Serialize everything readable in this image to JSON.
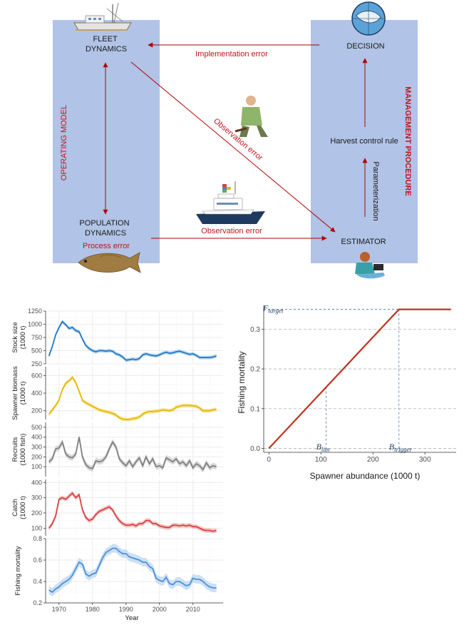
{
  "diagram": {
    "fleet_dynamics": [
      "FLEET",
      "DYNAMICS"
    ],
    "population_dynamics": [
      "POPULATION",
      "DYNAMICS"
    ],
    "process_error": "Process error",
    "operating_model": "OPERATING MODEL",
    "management_procedure": "MANAGEMENT PROCEDURE",
    "decision": "DECISION",
    "harvest_control_rule": "Harvest control rule",
    "estimator": "ESTIMATOR",
    "parameterization": "Parameterization",
    "implementation_error": "Implementation error",
    "observation_error_diag": "Observation error",
    "observation_error_horiz": "Observation error",
    "colors": {
      "box": "#b1c3e6",
      "arrow": "#b00000",
      "red_text": "#c0141c"
    }
  },
  "chart_data": [
    {
      "type": "line",
      "xlabel": "Year",
      "xlim": [
        1966,
        2019
      ],
      "x_ticks": [
        1970,
        1980,
        1990,
        2000,
        2010
      ],
      "x": [
        1967,
        1968,
        1969,
        1970,
        1971,
        1972,
        1973,
        1974,
        1975,
        1976,
        1977,
        1978,
        1979,
        1980,
        1981,
        1982,
        1983,
        1984,
        1985,
        1986,
        1987,
        1988,
        1989,
        1990,
        1991,
        1992,
        1993,
        1994,
        1995,
        1996,
        1997,
        1998,
        1999,
        2000,
        2001,
        2002,
        2003,
        2004,
        2005,
        2006,
        2007,
        2008,
        2009,
        2010,
        2011,
        2012,
        2013,
        2014,
        2015,
        2016,
        2017
      ],
      "panels": [
        {
          "ylabel": [
            "Stock size",
            "(1000 t)"
          ],
          "ylim": [
            250,
            1250
          ],
          "y_ticks": [
            250,
            500,
            750,
            1000,
            1250
          ],
          "color": "#1f78c8",
          "band_color": "#a6cbec",
          "values": [
            400,
            580,
            800,
            940,
            1050,
            990,
            920,
            940,
            880,
            860,
            720,
            600,
            540,
            500,
            480,
            500,
            500,
            490,
            500,
            490,
            440,
            420,
            380,
            320,
            330,
            340,
            330,
            350,
            420,
            440,
            420,
            410,
            400,
            420,
            450,
            470,
            450,
            460,
            480,
            490,
            470,
            450,
            430,
            440,
            410,
            370,
            370,
            370,
            370,
            380,
            400
          ],
          "band": 35
        },
        {
          "ylabel": [
            "Spawner biomass",
            "(1000 t)"
          ],
          "ylim": [
            100,
            700
          ],
          "y_ticks": [
            200,
            400,
            600
          ],
          "color": "#e6b800",
          "band_color": "#f5df8a",
          "values": [
            160,
            210,
            260,
            320,
            440,
            510,
            540,
            580,
            520,
            420,
            320,
            290,
            270,
            250,
            230,
            210,
            200,
            190,
            180,
            170,
            150,
            120,
            105,
            100,
            100,
            110,
            115,
            130,
            160,
            180,
            190,
            190,
            195,
            200,
            210,
            205,
            200,
            210,
            240,
            250,
            260,
            260,
            260,
            255,
            250,
            230,
            200,
            200,
            200,
            210,
            215
          ],
          "band": 22
        },
        {
          "ylabel": [
            "Recruits",
            "(1000 fish)"
          ],
          "ylim": [
            0,
            550
          ],
          "y_ticks": [
            100,
            200,
            300,
            400,
            500
          ],
          "color": "#7f7f7f",
          "band_color": "#cccccc",
          "values": [
            150,
            180,
            280,
            290,
            350,
            230,
            200,
            190,
            230,
            400,
            200,
            120,
            90,
            80,
            160,
            150,
            160,
            200,
            280,
            350,
            300,
            180,
            140,
            110,
            160,
            100,
            150,
            190,
            110,
            200,
            130,
            180,
            100,
            110,
            90,
            190,
            170,
            150,
            180,
            130,
            150,
            110,
            160,
            90,
            130,
            110,
            70,
            140,
            90,
            110,
            100
          ],
          "band": 30
        },
        {
          "ylabel": [
            "Catch",
            "(1000 t)"
          ],
          "ylim": [
            50,
            420
          ],
          "y_ticks": [
            100,
            200,
            300,
            400
          ],
          "color": "#d94040",
          "band_color": "#f2b3b3",
          "values": [
            100,
            130,
            180,
            290,
            300,
            290,
            310,
            330,
            300,
            320,
            220,
            170,
            150,
            160,
            190,
            210,
            220,
            230,
            240,
            220,
            180,
            150,
            130,
            120,
            120,
            125,
            115,
            130,
            130,
            150,
            150,
            130,
            130,
            115,
            110,
            105,
            105,
            120,
            120,
            115,
            120,
            115,
            120,
            110,
            110,
            100,
            90,
            85,
            85,
            80,
            85
          ],
          "band": 15
        },
        {
          "ylabel": [
            "Fishing mortality"
          ],
          "ylim": [
            0.2,
            0.8
          ],
          "y_ticks": [
            0.2,
            0.4,
            0.6,
            0.8
          ],
          "color": "#4a90d9",
          "band_color": "#bcd6f0",
          "values": [
            0.32,
            0.3,
            0.33,
            0.35,
            0.38,
            0.4,
            0.42,
            0.46,
            0.52,
            0.58,
            0.56,
            0.47,
            0.45,
            0.47,
            0.48,
            0.55,
            0.62,
            0.67,
            0.69,
            0.71,
            0.71,
            0.68,
            0.66,
            0.66,
            0.63,
            0.62,
            0.61,
            0.6,
            0.58,
            0.58,
            0.54,
            0.52,
            0.43,
            0.41,
            0.4,
            0.44,
            0.38,
            0.37,
            0.4,
            0.4,
            0.38,
            0.36,
            0.37,
            0.43,
            0.42,
            0.42,
            0.4,
            0.37,
            0.35,
            0.34,
            0.34
          ],
          "band": 0.04
        }
      ]
    },
    {
      "type": "line",
      "xlabel": "Spawner abundance (1000 t)",
      "ylabel": "Fishing mortality",
      "xlim": [
        -10,
        360
      ],
      "ylim": [
        -0.01,
        0.36
      ],
      "x_ticks": [
        0,
        100,
        200,
        300
      ],
      "y_ticks": [
        0.0,
        0.1,
        0.2,
        0.3
      ],
      "y_tick_labels": [
        "0.0",
        "0.1",
        "0.2",
        "0.3"
      ],
      "series": [
        {
          "x": [
            0,
            250,
            350
          ],
          "y": [
            0,
            0.35,
            0.35
          ],
          "color": "#c0301a"
        }
      ],
      "reference_lines": {
        "b_lim": 110,
        "b_trigger": 250,
        "f_target": 0.35
      },
      "annotations": {
        "f_target": {
          "main": "F",
          "sub": "target"
        },
        "b_lim": {
          "main": "B",
          "sub": "lim"
        },
        "b_trigger": {
          "main": "B",
          "sub": "trigger"
        }
      }
    }
  ]
}
